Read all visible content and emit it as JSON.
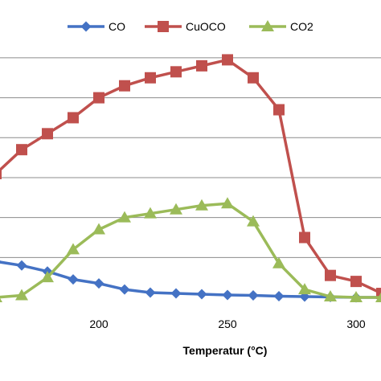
{
  "chart_data": {
    "type": "line",
    "title": "",
    "xlabel": "Temperatur (°C)",
    "ylabel": "",
    "xlim": [
      150,
      310
    ],
    "ylim": [
      0,
      6.2
    ],
    "x_ticks": [
      200,
      250,
      300
    ],
    "y_grid": [
      1,
      2,
      3,
      4,
      5,
      6
    ],
    "grid": true,
    "legend_position": "top",
    "series": [
      {
        "name": "CO",
        "color": "#4472C4",
        "marker": "diamond",
        "points": [
          [
            160,
            0.9
          ],
          [
            170,
            0.8
          ],
          [
            180,
            0.65
          ],
          [
            190,
            0.45
          ],
          [
            200,
            0.35
          ],
          [
            210,
            0.2
          ],
          [
            220,
            0.12
          ],
          [
            230,
            0.1
          ],
          [
            240,
            0.08
          ],
          [
            250,
            0.06
          ],
          [
            260,
            0.05
          ],
          [
            270,
            0.03
          ],
          [
            280,
            0.02
          ],
          [
            290,
            0.01
          ],
          [
            300,
            0.0
          ],
          [
            310,
            0.0
          ]
        ]
      },
      {
        "name": "CuOCO",
        "color": "#C0504D",
        "marker": "square",
        "points": [
          [
            150,
            2.7
          ],
          [
            160,
            3.1
          ],
          [
            170,
            3.7
          ],
          [
            180,
            4.1
          ],
          [
            190,
            4.5
          ],
          [
            200,
            5.0
          ],
          [
            210,
            5.3
          ],
          [
            220,
            5.5
          ],
          [
            230,
            5.65
          ],
          [
            240,
            5.8
          ],
          [
            250,
            5.95
          ],
          [
            260,
            5.5
          ],
          [
            270,
            4.7
          ],
          [
            280,
            1.5
          ],
          [
            290,
            0.55
          ],
          [
            300,
            0.4
          ],
          [
            310,
            0.1
          ]
        ]
      },
      {
        "name": "CO2",
        "color": "#9BBB59",
        "marker": "triangle",
        "points": [
          [
            160,
            0.0
          ],
          [
            170,
            0.05
          ],
          [
            180,
            0.5
          ],
          [
            190,
            1.2
          ],
          [
            200,
            1.7
          ],
          [
            210,
            2.0
          ],
          [
            220,
            2.1
          ],
          [
            230,
            2.2
          ],
          [
            240,
            2.3
          ],
          [
            250,
            2.35
          ],
          [
            260,
            1.9
          ],
          [
            270,
            0.85
          ],
          [
            280,
            0.2
          ],
          [
            290,
            0.02
          ],
          [
            300,
            0.0
          ],
          [
            310,
            0.0
          ]
        ]
      }
    ]
  }
}
